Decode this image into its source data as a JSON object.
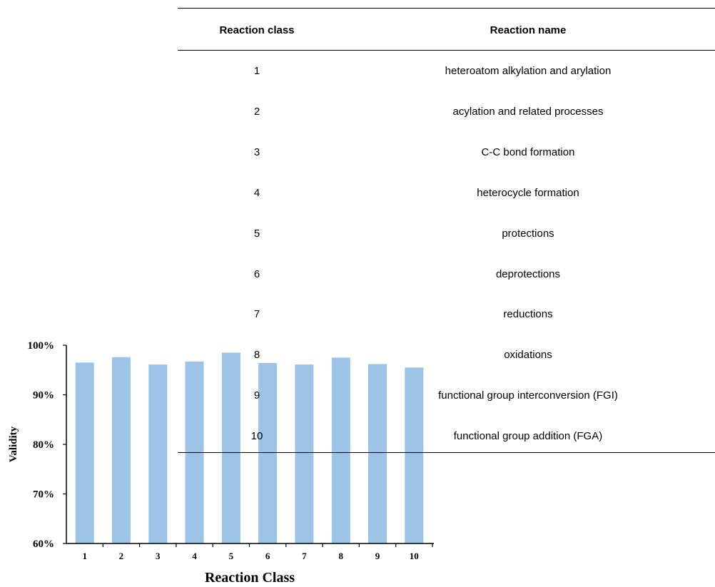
{
  "chart_data": {
    "type": "bar",
    "categories": [
      "1",
      "2",
      "3",
      "4",
      "5",
      "6",
      "7",
      "8",
      "9",
      "10"
    ],
    "values": [
      96.5,
      97.6,
      96.1,
      96.7,
      98.5,
      96.4,
      96.1,
      97.5,
      96.2,
      95.5
    ],
    "xlabel": "Reaction Class",
    "ylabel": "Validity",
    "ylim": [
      60,
      100
    ],
    "yticks": [
      "60%",
      "70%",
      "80%",
      "90%",
      "100%"
    ],
    "ytick_values": [
      60,
      70,
      80,
      90,
      100
    ],
    "bar_color": "#9DC3E6",
    "grid": false
  },
  "table": {
    "headers": [
      "Reaction class",
      "Reaction name"
    ],
    "rows": [
      [
        "1",
        "heteroatom alkylation and arylation"
      ],
      [
        "2",
        "acylation and related processes"
      ],
      [
        "3",
        "C-C bond formation"
      ],
      [
        "4",
        "heterocycle formation"
      ],
      [
        "5",
        "protections"
      ],
      [
        "6",
        "deprotections"
      ],
      [
        "7",
        "reductions"
      ],
      [
        "8",
        "oxidations"
      ],
      [
        "9",
        "functional group interconversion (FGI)"
      ],
      [
        "10",
        "functional group addition (FGA)"
      ]
    ]
  }
}
